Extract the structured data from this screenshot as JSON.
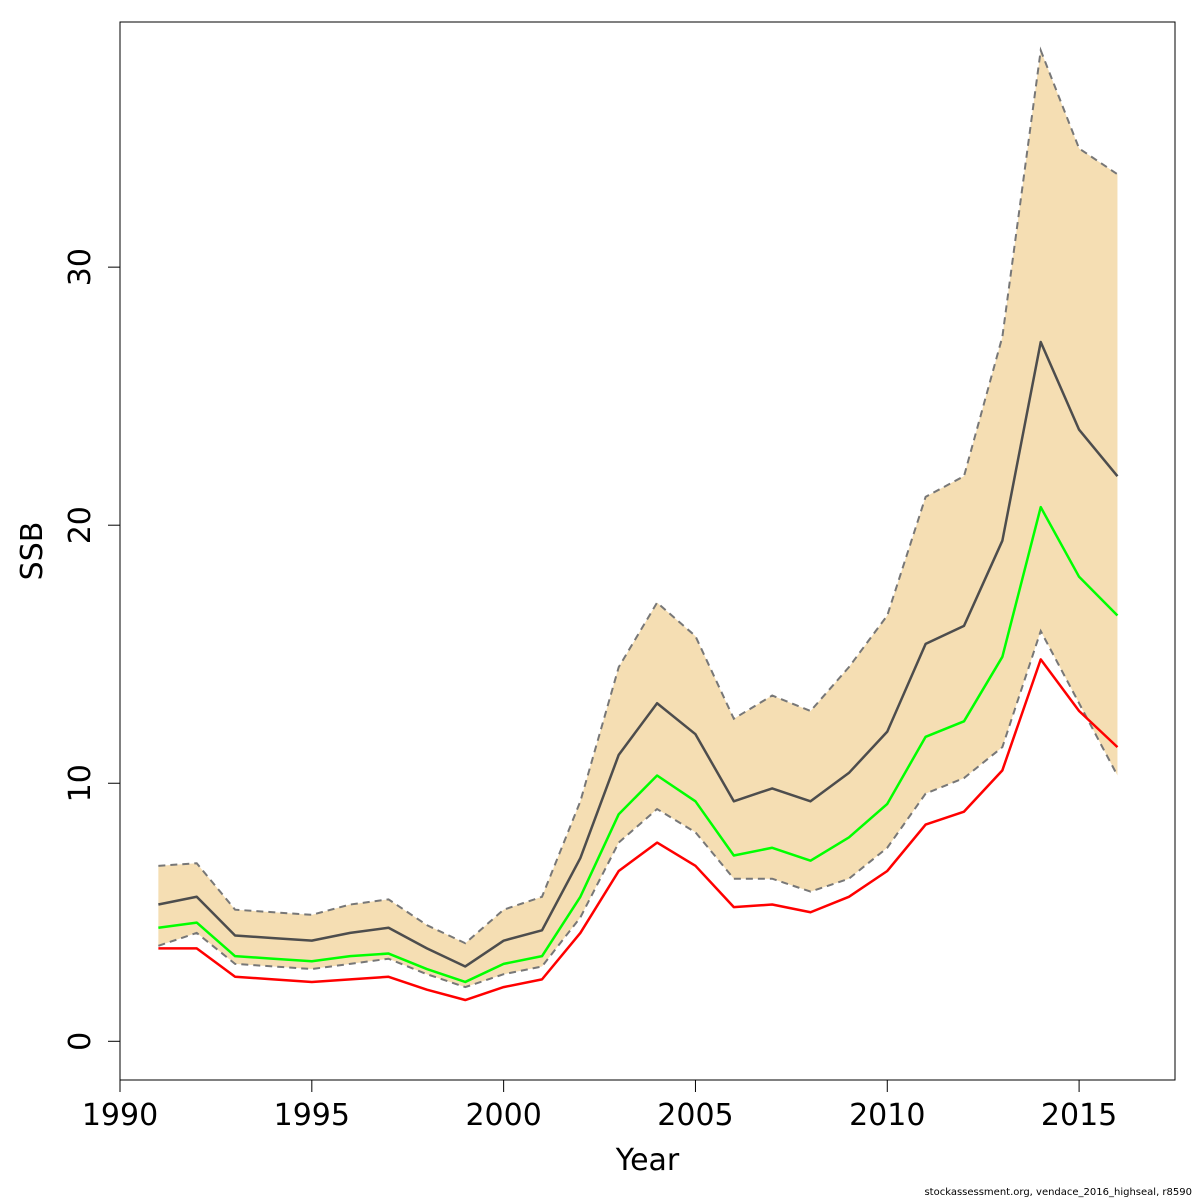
{
  "chart_data": {
    "type": "line",
    "xlabel": "Year",
    "ylabel": "SSB",
    "xlim": [
      1990,
      2017.5
    ],
    "ylim": [
      -1.5,
      39.5
    ],
    "x_ticks": [
      1990,
      1995,
      2000,
      2005,
      2010,
      2015
    ],
    "y_ticks": [
      0,
      10,
      20,
      30
    ],
    "grid": false,
    "x": [
      1991,
      1992,
      1993,
      1994,
      1995,
      1996,
      1997,
      1998,
      1999,
      2000,
      2001,
      2002,
      2003,
      2004,
      2005,
      2006,
      2007,
      2008,
      2009,
      2010,
      2011,
      2012,
      2013,
      2014,
      2015,
      2016
    ],
    "band": {
      "color": "#f5deb3",
      "upper": [
        6.8,
        6.9,
        5.1,
        5.0,
        4.9,
        5.3,
        5.5,
        4.5,
        3.8,
        5.1,
        5.6,
        9.3,
        14.5,
        17.0,
        15.7,
        12.5,
        13.4,
        12.8,
        14.5,
        16.5,
        21.1,
        21.9,
        27.3,
        38.4,
        34.6,
        33.6
      ],
      "lower": [
        3.7,
        4.2,
        3.0,
        2.9,
        2.8,
        3.0,
        3.2,
        2.6,
        2.1,
        2.6,
        2.9,
        4.8,
        7.7,
        9.0,
        8.1,
        6.3,
        6.3,
        5.8,
        6.3,
        7.5,
        9.6,
        10.2,
        11.4,
        15.9,
        13.1,
        10.3
      ]
    },
    "series": [
      {
        "color": "#4d4d4d",
        "values": [
          5.3,
          5.6,
          4.1,
          4.0,
          3.9,
          4.2,
          4.4,
          3.6,
          2.9,
          3.9,
          4.3,
          7.1,
          11.1,
          13.1,
          11.9,
          9.3,
          9.8,
          9.3,
          10.4,
          12.0,
          15.4,
          16.1,
          19.4,
          27.1,
          23.7,
          21.9
        ]
      },
      {
        "color": "#00ff00",
        "values": [
          4.4,
          4.6,
          3.3,
          3.2,
          3.1,
          3.3,
          3.4,
          2.8,
          2.3,
          3.0,
          3.3,
          5.6,
          8.8,
          10.3,
          9.3,
          7.2,
          7.5,
          7.0,
          7.9,
          9.2,
          11.8,
          12.4,
          14.9,
          20.7,
          18.0,
          16.5
        ]
      },
      {
        "color": "#ff0000",
        "values": [
          3.6,
          3.6,
          2.5,
          2.4,
          2.3,
          2.4,
          2.5,
          2.0,
          1.6,
          2.1,
          2.4,
          4.2,
          6.6,
          7.7,
          6.8,
          5.2,
          5.3,
          5.0,
          5.6,
          6.6,
          8.4,
          8.9,
          10.5,
          14.8,
          12.8,
          11.4
        ]
      }
    ]
  },
  "caption": "stockassessment.org, vendace_2016_highseal, r8590"
}
